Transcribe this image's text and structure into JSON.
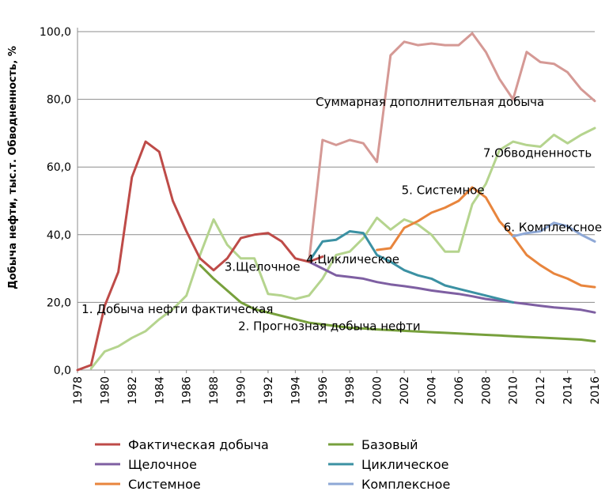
{
  "chart_data": {
    "type": "line",
    "title": "",
    "xlabel": "",
    "ylabel": "Добыча нефти, тыс.т. Обводненность, %",
    "ylim": [
      0,
      100
    ],
    "y_ticks": [
      "0,0",
      "20,0",
      "40,0",
      "60,0",
      "80,0",
      "100,0"
    ],
    "x_ticks": [
      "1978",
      "1980",
      "1982",
      "1984",
      "1986",
      "1988",
      "1990",
      "1992",
      "1994",
      "1996",
      "1998",
      "2000",
      "2002",
      "2004",
      "2006",
      "2008",
      "2010",
      "2012",
      "2014",
      "2016"
    ],
    "annotations": [
      {
        "id": "summ",
        "text": "Суммарная дополнительная добыча",
        "x": 1995.5,
        "y": 78
      },
      {
        "id": "obv",
        "text": "7.Обводненность",
        "x": 2007.8,
        "y": 63
      },
      {
        "id": "sys",
        "text": "5. Системное",
        "x": 2001.8,
        "y": 52
      },
      {
        "id": "kompl",
        "text": "6. Комплексное",
        "x": 2009.3,
        "y": 41
      },
      {
        "id": "cycl",
        "text": "4.Циклическое",
        "x": 1994.8,
        "y": 31.5
      },
      {
        "id": "shch",
        "text": "3.Щелочное",
        "x": 1988.8,
        "y": 29.3
      },
      {
        "id": "fact",
        "text": "1. Добыча  нефти фактическая",
        "x": 1978.3,
        "y": 16.8
      },
      {
        "id": "prog",
        "text": "2. Прогнозная добыча нефти",
        "x": 1989.8,
        "y": 11.8
      }
    ],
    "series": [
      {
        "name": "Фактическая добыча",
        "color": "#be4b48",
        "in_legend": true,
        "x": [
          1978,
          1979,
          1980,
          1981,
          1982,
          1983,
          1984,
          1985,
          1986,
          1987,
          1988,
          1989,
          1990,
          1991,
          1992,
          1993,
          1994,
          1995,
          1996
        ],
        "values": [
          0,
          1.5,
          19,
          29,
          57,
          67.5,
          64.5,
          50,
          41,
          33,
          29.5,
          33,
          39,
          40,
          40.5,
          38,
          33,
          32,
          33.5
        ]
      },
      {
        "name": "Базовый",
        "color": "#77a03c",
        "in_legend": true,
        "x": [
          1987,
          1988,
          1989,
          1990,
          1991,
          1992,
          1993,
          1994,
          1995,
          1996,
          1997,
          1998,
          1999,
          2000,
          2001,
          2002,
          2003,
          2004,
          2005,
          2006,
          2007,
          2008,
          2009,
          2010,
          2011,
          2012,
          2013,
          2014,
          2015,
          2016
        ],
        "values": [
          31,
          27,
          23.5,
          20,
          18,
          17,
          16,
          15,
          14,
          13.5,
          13,
          12.5,
          12.3,
          12,
          11.8,
          11.6,
          11.4,
          11.2,
          11,
          10.8,
          10.6,
          10.4,
          10.2,
          10,
          9.8,
          9.6,
          9.4,
          9.2,
          9,
          8.5
        ]
      },
      {
        "name": "Щелочное",
        "color": "#7e5fa2",
        "in_legend": true,
        "x": [
          1995,
          1996,
          1997,
          1998,
          1999,
          2000,
          2001,
          2002,
          2003,
          2004,
          2005,
          2006,
          2007,
          2008,
          2009,
          2010,
          2011,
          2012,
          2013,
          2014,
          2015,
          2016
        ],
        "values": [
          32,
          30,
          28,
          27.5,
          27,
          26,
          25.3,
          24.8,
          24.2,
          23.5,
          23,
          22.5,
          21.8,
          21,
          20.5,
          20,
          19.5,
          19,
          18.5,
          18.2,
          17.8,
          17
        ]
      },
      {
        "name": "Циклическое",
        "color": "#3b91a3",
        "in_legend": true,
        "x": [
          1995,
          1996,
          1997,
          1998,
          1999,
          2000,
          2001,
          2002,
          2003,
          2004,
          2005,
          2006,
          2007,
          2008,
          2009,
          2010
        ],
        "values": [
          32,
          38,
          38.5,
          41,
          40.5,
          34,
          32,
          29.5,
          28,
          27,
          25,
          24,
          23,
          22,
          21,
          20
        ]
      },
      {
        "name": "Системное",
        "color": "#e8853d",
        "in_legend": true,
        "x": [
          2000,
          2001,
          2002,
          2003,
          2004,
          2005,
          2006,
          2007,
          2008,
          2009,
          2010,
          2011,
          2012,
          2013,
          2014,
          2015,
          2016
        ],
        "values": [
          35.5,
          36,
          42,
          44,
          46.5,
          48,
          50,
          54,
          51,
          44,
          39.5,
          34,
          31,
          28.5,
          27,
          25,
          24.5
        ]
      },
      {
        "name": "Комплексное",
        "color": "#8ea8d6",
        "in_legend": true,
        "x": [
          2010,
          2011,
          2012,
          2013,
          2014,
          2015,
          2016
        ],
        "values": [
          39.5,
          40.5,
          41,
          43.5,
          42.5,
          40,
          38
        ]
      },
      {
        "name": "Обводненность",
        "color": "#b5d48e",
        "in_legend": false,
        "x": [
          1979,
          1980,
          1981,
          1982,
          1983,
          1984,
          1985,
          1986,
          1987,
          1988,
          1989,
          1990,
          1991,
          1992,
          1993,
          1994,
          1995,
          1996,
          1997,
          1998,
          1999,
          2000,
          2001,
          2002,
          2003,
          2004,
          2005,
          2006,
          2007,
          2008,
          2009,
          2010,
          2011,
          2012,
          2013,
          2014,
          2015,
          2016
        ],
        "values": [
          0.5,
          5.5,
          7,
          9.5,
          11.5,
          15,
          18,
          22,
          34,
          44.5,
          37,
          33,
          33,
          22.5,
          22,
          21,
          22,
          27,
          34,
          35,
          39,
          45,
          41.5,
          44.5,
          43,
          40,
          35,
          35,
          49,
          55,
          65,
          67.5,
          66.5,
          66,
          69.5,
          67,
          69.5,
          71.5
        ]
      },
      {
        "name": "Суммарная дополнительная добыча",
        "color": "#d59995",
        "in_legend": false,
        "x": [
          1995,
          1996,
          1997,
          1998,
          1999,
          2000,
          2001,
          2002,
          2003,
          2004,
          2005,
          2006,
          2007,
          2008,
          2009,
          2010,
          2011,
          2012,
          2013,
          2014,
          2015,
          2016
        ],
        "values": [
          32,
          68,
          66.5,
          68,
          67,
          61.5,
          93,
          97,
          96,
          96.5,
          96,
          96,
          99.5,
          94,
          86,
          80,
          94,
          91,
          90.5,
          88,
          83,
          79.5
        ]
      }
    ]
  }
}
